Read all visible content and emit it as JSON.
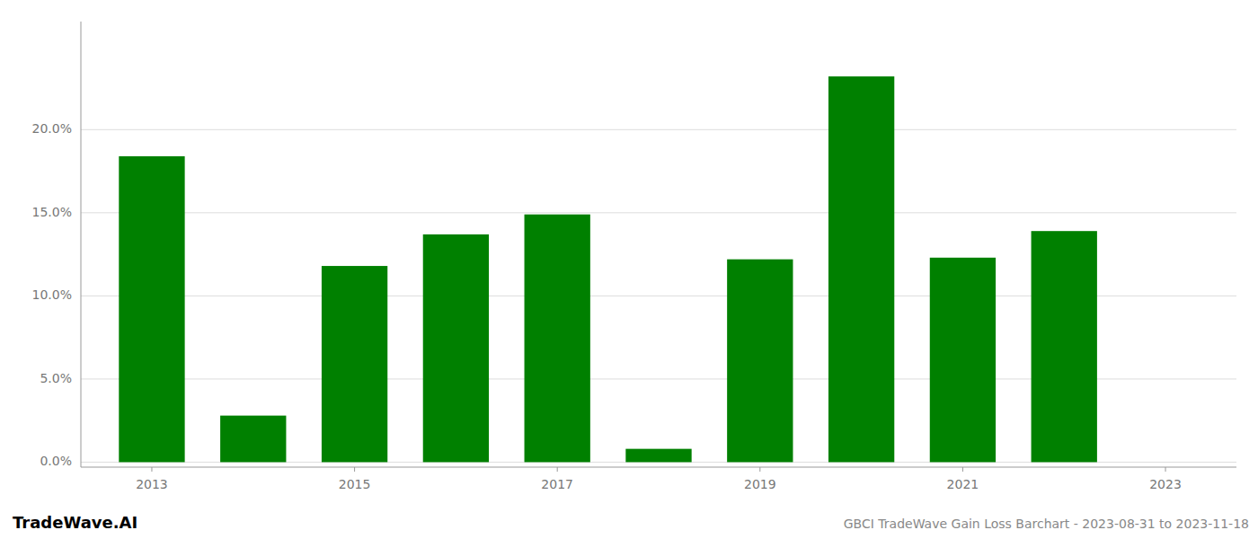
{
  "chart_data": {
    "type": "bar",
    "title": "GBCI TradeWave Gain Loss Barchart - 2023-08-31 to 2023-11-18",
    "annotations": [
      "TradeWave.AI"
    ],
    "x": [
      2013,
      2014,
      2015,
      2016,
      2017,
      2018,
      2019,
      2020,
      2021,
      2022,
      2023
    ],
    "values": [
      0.184,
      0.028,
      0.118,
      0.137,
      0.149,
      0.008,
      0.122,
      0.232,
      0.123,
      0.139,
      0.0
    ],
    "color": "#008000",
    "xlim": [
      2012.3,
      2023.7
    ],
    "xticks": [
      2013,
      2015,
      2017,
      2019,
      2021,
      2023
    ],
    "ylim": [
      -0.003,
      0.265
    ],
    "yticks": [
      {
        "value": 0.0,
        "label": "0.0%"
      },
      {
        "value": 0.05,
        "label": "5.0%"
      },
      {
        "value": 0.1,
        "label": "10.0%"
      },
      {
        "value": 0.15,
        "label": "15.0%"
      },
      {
        "value": 0.2,
        "label": "20.0%"
      }
    ],
    "grid": true
  }
}
